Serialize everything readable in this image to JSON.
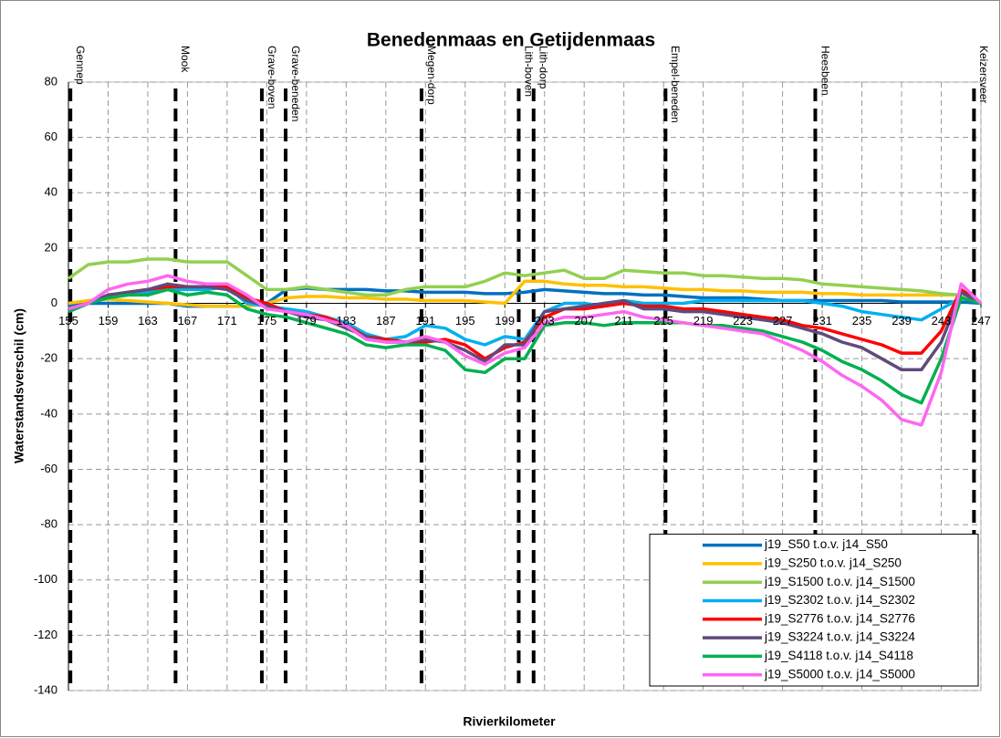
{
  "chart_data": {
    "type": "line",
    "title": "Benedenmaas en Getijdenmaas",
    "x_label": "Rivierkilometer",
    "y_label": "Waterstandsverschil (cm)",
    "xlim": [
      155,
      247
    ],
    "ylim": [
      -140,
      80
    ],
    "xticks": [
      155,
      159,
      163,
      167,
      171,
      175,
      179,
      183,
      187,
      191,
      195,
      199,
      203,
      207,
      211,
      215,
      219,
      223,
      227,
      231,
      235,
      239,
      243,
      247
    ],
    "yticks": [
      -140,
      -120,
      -100,
      -80,
      -60,
      -40,
      -20,
      0,
      20,
      40,
      60,
      80
    ],
    "grid": true,
    "legend": "lower right",
    "structures": [
      {
        "name": "Gennep",
        "km": 155.2
      },
      {
        "name": "Mook",
        "km": 165.8
      },
      {
        "name": "Grave-boven",
        "km": 174.5
      },
      {
        "name": "Grave-beneden",
        "km": 176.9
      },
      {
        "name": "Megen-dorp",
        "km": 190.6
      },
      {
        "name": "Lith-boven",
        "km": 200.4
      },
      {
        "name": "Lith-dorp",
        "km": 201.9
      },
      {
        "name": "Empel-beneden",
        "km": 215.2
      },
      {
        "name": "Heesbeen",
        "km": 230.3
      },
      {
        "name": "Keizersveer",
        "km": 246.3
      }
    ],
    "x": [
      155,
      157,
      159,
      161,
      163,
      165,
      167,
      169,
      171,
      173,
      175,
      177,
      179,
      181,
      183,
      185,
      187,
      189,
      191,
      193,
      195,
      197,
      199,
      201,
      203,
      205,
      207,
      209,
      211,
      213,
      215,
      217,
      219,
      221,
      223,
      225,
      227,
      229,
      231,
      233,
      235,
      237,
      239,
      241,
      243,
      245,
      247
    ],
    "series": [
      {
        "name": "j19_S50 t.o.v. j14_S50",
        "color": "#0070c0",
        "values": [
          -1,
          0,
          0,
          0,
          0,
          0,
          -1,
          -1,
          -1,
          -1,
          0,
          5,
          5.5,
          5,
          5,
          5,
          4.5,
          4.5,
          4,
          4,
          4,
          3.5,
          3.5,
          4,
          5,
          4.5,
          4,
          3.5,
          3.5,
          3,
          3,
          2.5,
          2,
          2,
          2,
          1.5,
          1,
          1,
          1,
          1,
          1,
          1,
          0.5,
          0.5,
          0.5,
          0.5,
          0
        ]
      },
      {
        "name": "j19_S250 t.o.v. j14_S250",
        "color": "#ffc000",
        "values": [
          0,
          1,
          1.5,
          1,
          0.5,
          0,
          -0.5,
          -1,
          -1,
          -1,
          0,
          2,
          2.5,
          2.5,
          2,
          2,
          1.5,
          1.5,
          1,
          1,
          1,
          0.5,
          0,
          8,
          8,
          7,
          6.5,
          6.5,
          6,
          6,
          5.5,
          5,
          5,
          4.5,
          4.5,
          4,
          4,
          4,
          3.5,
          3.5,
          3,
          3,
          3,
          3,
          3,
          3,
          0
        ]
      },
      {
        "name": "j19_S1500 t.o.v. j14_S1500",
        "color": "#92d050",
        "values": [
          9,
          14,
          15,
          15,
          16,
          16,
          15,
          15,
          15,
          10,
          5,
          5,
          6,
          5,
          4,
          3,
          3,
          5,
          6,
          6,
          6,
          8,
          11,
          10,
          11,
          12,
          9,
          9,
          12,
          11.5,
          11,
          11,
          10,
          10,
          9.5,
          9,
          9,
          8.5,
          7,
          6.5,
          6,
          5.5,
          5,
          4.5,
          3.5,
          3,
          0
        ]
      },
      {
        "name": "j19_S2302 t.o.v. j14_S2302",
        "color": "#00b0f0",
        "values": [
          -3,
          0,
          2,
          3,
          4,
          5,
          5,
          5,
          6,
          0,
          -1,
          -2,
          -3,
          -5,
          -7,
          -11,
          -13,
          -12,
          -8,
          -9,
          -13,
          -15,
          -12,
          -13,
          -3,
          0,
          0,
          -1,
          1,
          0,
          0,
          0,
          1,
          1,
          1,
          1,
          1,
          1,
          0,
          -1,
          -3,
          -4,
          -5,
          -6,
          -2,
          2,
          0
        ]
      },
      {
        "name": "j19_S2776 t.o.v. j14_S2776",
        "color": "#ff0000",
        "values": [
          -2,
          0,
          3,
          4,
          5,
          6,
          6,
          6,
          6,
          2,
          0,
          -3,
          -4,
          -5,
          -8,
          -12,
          -13,
          -14,
          -14,
          -13,
          -15,
          -20,
          -16,
          -14,
          -5,
          -2,
          -2,
          -1,
          0,
          -1,
          -1,
          -2,
          -2,
          -3,
          -4,
          -5,
          -6,
          -8,
          -9,
          -11,
          -13,
          -15,
          -18,
          -18,
          -10,
          5,
          0
        ]
      },
      {
        "name": "j19_S3224 t.o.v. j14_S3224",
        "color": "#604a7b",
        "values": [
          -3,
          0,
          3,
          4,
          5,
          7,
          6,
          6,
          5,
          1,
          -1,
          -3,
          -5,
          -6,
          -9,
          -12,
          -14,
          -14,
          -13,
          -14,
          -17,
          -21,
          -15,
          -15,
          -3,
          -2,
          -1,
          0,
          1,
          -2,
          -2,
          -3,
          -3,
          -4,
          -5,
          -6,
          -7,
          -9,
          -11,
          -14,
          -16,
          -20,
          -24,
          -24,
          -14,
          4,
          0
        ]
      },
      {
        "name": "j19_S4118 t.o.v. j14_S4118",
        "color": "#00b050",
        "values": [
          -3,
          0,
          2,
          3,
          3,
          5,
          3,
          4,
          3,
          -2,
          -4,
          -5,
          -7,
          -9,
          -11,
          -15,
          -16,
          -15,
          -15,
          -17,
          -24,
          -25,
          -20,
          -20,
          -8,
          -7,
          -7,
          -8,
          -7,
          -7,
          -7,
          -7,
          -8,
          -8,
          -9,
          -10,
          -12,
          -14,
          -17,
          -21,
          -24,
          -28,
          -33,
          -36,
          -20,
          2,
          0
        ]
      },
      {
        "name": "j19_S5000 t.o.v. j14_S5000",
        "color": "#ff66f0",
        "values": [
          -2,
          0,
          5,
          7,
          8,
          10,
          8,
          7,
          7,
          3,
          -2,
          -3,
          -4,
          -6,
          -8,
          -13,
          -14,
          -14,
          -12,
          -14,
          -19,
          -22,
          -18,
          -16,
          -7,
          -5,
          -5,
          -4,
          -3,
          -5,
          -6,
          -7,
          -8,
          -9,
          -10,
          -11,
          -14,
          -17,
          -21,
          -26,
          -30,
          -35,
          -42,
          -44,
          -25,
          7,
          0
        ]
      }
    ]
  }
}
